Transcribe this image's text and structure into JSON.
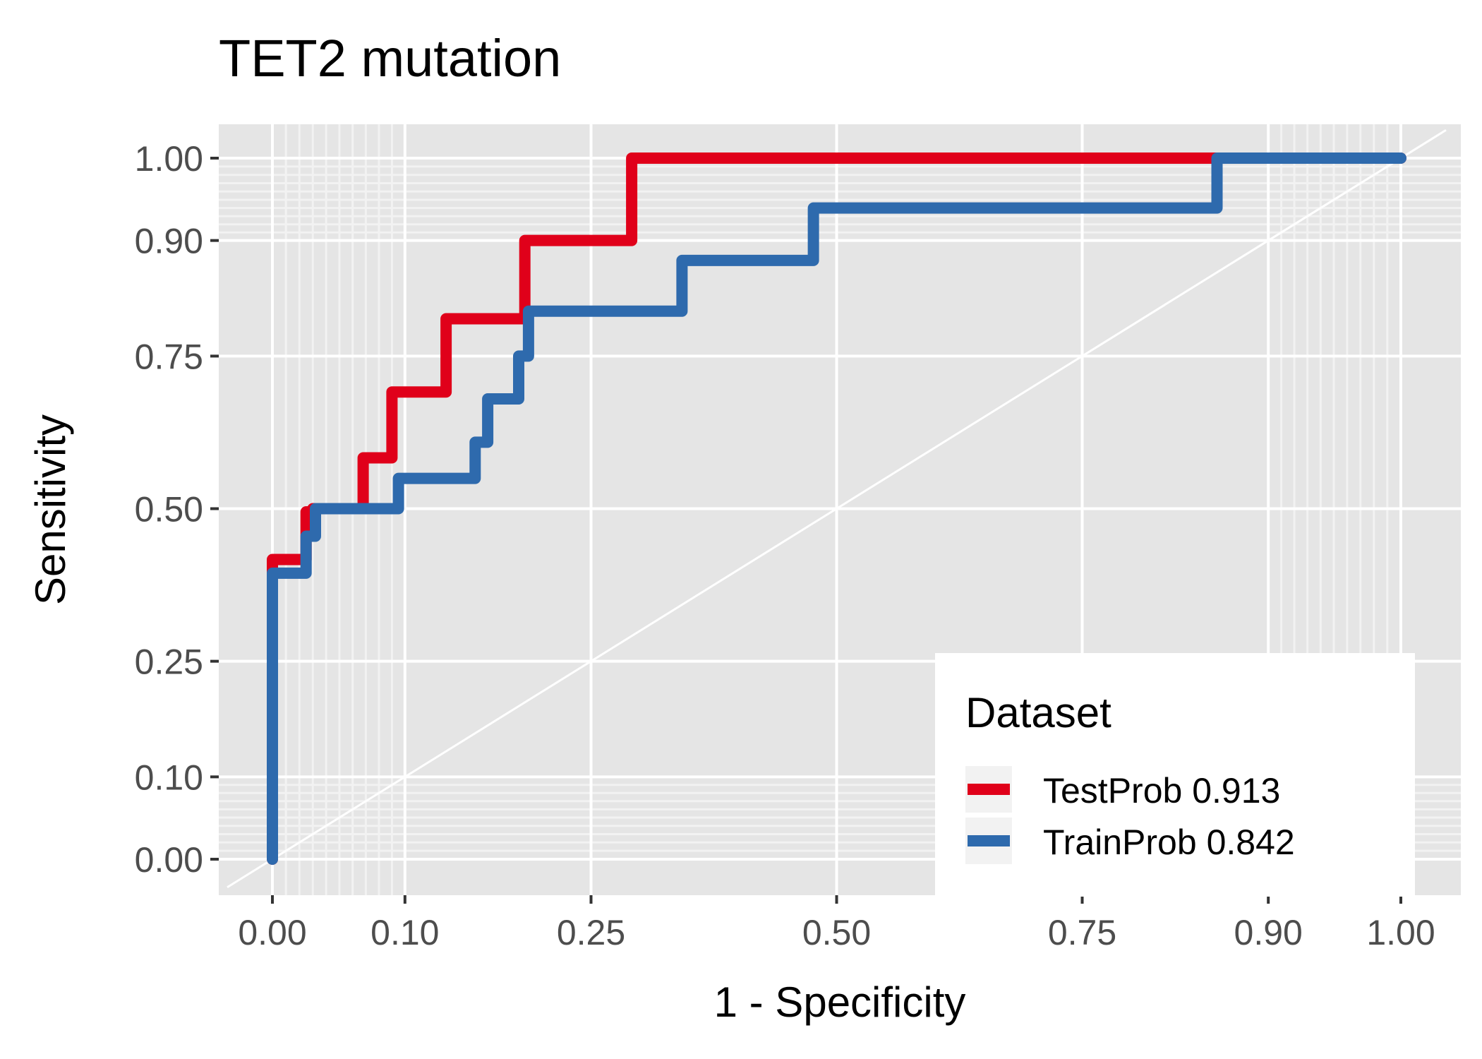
{
  "chart_data": {
    "type": "line",
    "title": "TET2 mutation",
    "xlabel": "1 - Specificity",
    "ylabel": "Sensitivity",
    "xlim": [
      0,
      1
    ],
    "ylim": [
      0,
      1
    ],
    "x_ticks": [
      "0.00",
      "0.10",
      "0.25",
      "0.50",
      "0.75",
      "0.90",
      "1.00"
    ],
    "y_ticks": [
      "0.00",
      "0.10",
      "0.25",
      "0.50",
      "0.75",
      "0.90",
      "1.00"
    ],
    "x_tick_values": [
      0,
      0.1,
      0.25,
      0.5,
      0.75,
      0.9,
      1.0
    ],
    "y_tick_values": [
      0,
      0.1,
      0.25,
      0.5,
      0.75,
      0.9,
      1.0
    ],
    "grid": true,
    "reference_line": "diagonal",
    "legend": {
      "title": "Dataset",
      "position": "bottom-right"
    },
    "series": [
      {
        "name": "TestProb 0.913",
        "color": "#e0001a",
        "x": [
          0,
          0,
          0.025,
          0.025,
          0.03,
          0.03,
          0.068,
          0.068,
          0.09,
          0.09,
          0.132,
          0.132,
          0.195,
          0.195,
          0.285,
          0.285,
          0.87,
          1.0
        ],
        "y": [
          0,
          0.4,
          0.4,
          0.49,
          0.49,
          0.5,
          0.5,
          0.6,
          0.6,
          0.7,
          0.7,
          0.8,
          0.8,
          0.9,
          0.9,
          1.0,
          1.0,
          1.0
        ]
      },
      {
        "name": "TrainProb 0.842",
        "color": "#2e6aad",
        "x": [
          0,
          0,
          0.025,
          0.025,
          0.032,
          0.032,
          0.095,
          0.095,
          0.155,
          0.155,
          0.165,
          0.165,
          0.19,
          0.19,
          0.198,
          0.198,
          0.33,
          0.33,
          0.465,
          0.465,
          0.86,
          0.86,
          1.0
        ],
        "y": [
          0,
          0.378,
          0.378,
          0.44,
          0.44,
          0.5,
          0.5,
          0.565,
          0.565,
          0.625,
          0.625,
          0.69,
          0.69,
          0.75,
          0.75,
          0.81,
          0.81,
          0.875,
          0.875,
          0.94,
          0.94,
          1.0,
          1.0
        ]
      }
    ]
  }
}
